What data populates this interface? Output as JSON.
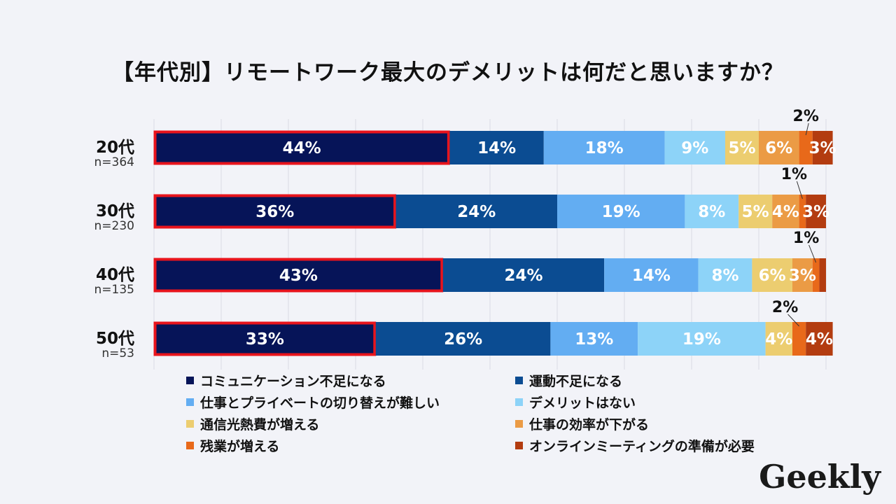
{
  "chart_data": {
    "type": "stacked-bar-horizontal",
    "title": "【年代別】リモートワーク最大のデメリットは何だと思いますか？",
    "unit": "%",
    "categories": [
      {
        "label": "20代",
        "n": "n=364"
      },
      {
        "label": "30代",
        "n": "n=230"
      },
      {
        "label": "40代",
        "n": "n=135"
      },
      {
        "label": "50代",
        "n": "n=53"
      }
    ],
    "series": [
      {
        "name": "コミュニケーション不足になる",
        "color": "#061458",
        "values": [
          44,
          36,
          43,
          33
        ]
      },
      {
        "name": "運動不足になる",
        "color": "#0b4c92",
        "values": [
          14,
          24,
          24,
          26
        ]
      },
      {
        "name": "仕事とプライベートの切り替えが難しい",
        "color": "#63adf2",
        "values": [
          18,
          19,
          14,
          13
        ]
      },
      {
        "name": "デメリットはない",
        "color": "#8dd3f8",
        "values": [
          9,
          8,
          8,
          19
        ]
      },
      {
        "name": "通信光熱費が増える",
        "color": "#eccd70",
        "values": [
          5,
          5,
          6,
          4
        ]
      },
      {
        "name": "仕事の効率が下がる",
        "color": "#eb9b45",
        "values": [
          6,
          4,
          3,
          0
        ]
      },
      {
        "name": "残業が増える",
        "color": "#e8691a",
        "values": [
          2,
          1,
          1,
          2
        ]
      },
      {
        "name": "オンラインミーティングの準備が必要",
        "color": "#b33c10",
        "values": [
          3,
          3,
          1,
          4
        ]
      }
    ],
    "data_labels": [
      [
        "44%",
        "14%",
        "18%",
        "9%",
        "5%",
        "6%",
        "2%",
        "3%"
      ],
      [
        "36%",
        "24%",
        "19%",
        "8%",
        "5%",
        "4%",
        "1%",
        "3%"
      ],
      [
        "43%",
        "24%",
        "14%",
        "8%",
        "6%",
        "3%",
        "1%",
        ""
      ],
      [
        "33%",
        "26%",
        "13%",
        "19%",
        "4%",
        "",
        "2%",
        "4%"
      ]
    ],
    "highlight_series": "コミュニケーション不足になる",
    "highlight_color": "#e8141c",
    "xlim": [
      0,
      100
    ],
    "grid": true
  },
  "brand": {
    "logo_text": "Geekly"
  }
}
